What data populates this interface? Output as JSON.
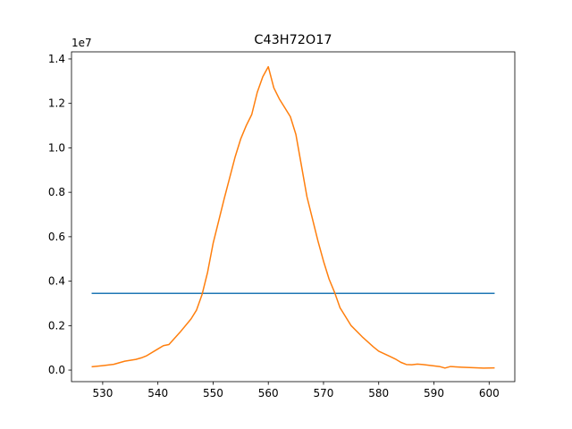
{
  "chart_data": {
    "type": "line",
    "title": "C43H72O17",
    "xlabel": "",
    "ylabel": "",
    "y_offset_label": "1e7",
    "xlim": [
      524.35,
      604.65
    ],
    "ylim": [
      -520000,
      14320000
    ],
    "x_ticks": [
      530,
      540,
      550,
      560,
      570,
      580,
      590,
      600
    ],
    "x_tick_labels": [
      "530",
      "540",
      "550",
      "560",
      "570",
      "580",
      "590",
      "600"
    ],
    "y_ticks": [
      0,
      2000000,
      4000000,
      6000000,
      8000000,
      10000000,
      12000000,
      14000000
    ],
    "y_tick_labels": [
      "0.0",
      "0.2",
      "0.4",
      "0.6",
      "0.8",
      "1.0",
      "1.2",
      "1.4"
    ],
    "grid": false,
    "series": [
      {
        "color": "#1f77b4",
        "x": [
          528,
          601
        ],
        "y": [
          3450000,
          3450000
        ]
      },
      {
        "color": "#ff7f0e",
        "x": [
          528,
          530,
          532,
          534,
          536,
          537,
          538,
          540,
          541,
          542,
          544,
          546,
          547,
          548,
          549,
          550,
          552,
          554,
          555,
          556,
          557,
          558,
          559,
          560,
          561,
          562,
          563,
          564,
          565,
          566,
          567,
          568,
          569,
          570,
          571,
          572,
          573,
          575,
          577,
          579,
          580,
          582,
          583,
          584,
          585,
          586,
          587,
          588,
          590,
          591,
          592,
          593,
          595,
          597,
          599,
          601
        ],
        "y": [
          150000,
          200000,
          260000,
          400000,
          480000,
          550000,
          650000,
          950000,
          1100000,
          1150000,
          1700000,
          2300000,
          2700000,
          3400000,
          4400000,
          5700000,
          7700000,
          9600000,
          10400000,
          11000000,
          11500000,
          12500000,
          13200000,
          13650000,
          12700000,
          12200000,
          11800000,
          11400000,
          10600000,
          9200000,
          7800000,
          6800000,
          5800000,
          4900000,
          4100000,
          3500000,
          2800000,
          2000000,
          1500000,
          1050000,
          850000,
          620000,
          500000,
          350000,
          250000,
          240000,
          270000,
          250000,
          190000,
          160000,
          90000,
          160000,
          130000,
          110000,
          90000,
          100000
        ]
      }
    ]
  }
}
